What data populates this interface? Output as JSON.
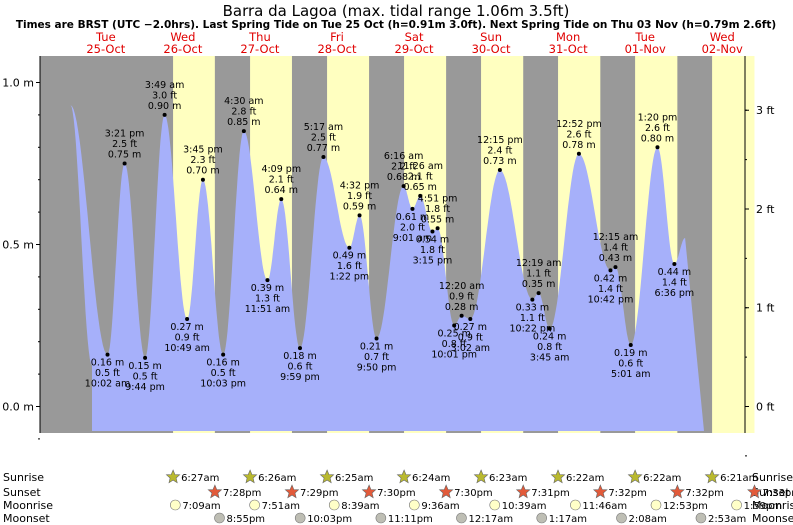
{
  "chart_data": {
    "type": "area",
    "title": "Barra da Lagoa (max. tidal range 1.06m 3.5ft)",
    "subtitle": "Times are BRST (UTC −2.0hrs). Last Spring Tide on Tue 25 Oct (h=0.91m 3.0ft). Next Spring Tide on Thu 03 Nov (h=0.79m 2.6ft)",
    "days": [
      {
        "name": "Tue",
        "date": "25-Oct"
      },
      {
        "name": "Wed",
        "date": "26-Oct"
      },
      {
        "name": "Thu",
        "date": "27-Oct"
      },
      {
        "name": "Fri",
        "date": "28-Oct"
      },
      {
        "name": "Sat",
        "date": "29-Oct"
      },
      {
        "name": "Sun",
        "date": "30-Oct"
      },
      {
        "name": "Mon",
        "date": "31-Oct"
      },
      {
        "name": "Tue",
        "date": "01-Nov"
      },
      {
        "name": "Wed",
        "date": "02-Nov"
      }
    ],
    "ylim_m": [
      -0.17,
      1.06
    ],
    "yticks_left": [
      "1.0 m",
      "0.5 m",
      "0.0 m"
    ],
    "yticks_right": [
      "3 ft",
      "2 ft",
      "1 ft",
      "0 ft"
    ],
    "tides": [
      {
        "t": "",
        "m": 0.93,
        "type": "high",
        "label": false
      },
      {
        "t": "10:02 am",
        "m": 0.16,
        "ft": "0.5 ft",
        "ml": "0.16 m",
        "type": "low"
      },
      {
        "t": "3:21 pm",
        "m": 0.75,
        "ft": "2.5 ft",
        "ml": "0.75 m",
        "type": "high"
      },
      {
        "t": "9:44 pm",
        "m": 0.15,
        "ft": "0.5 ft",
        "ml": "0.15 m",
        "type": "low"
      },
      {
        "t": "3:49 am",
        "m": 0.9,
        "ft": "3.0 ft",
        "ml": "0.90 m",
        "type": "high"
      },
      {
        "t": "10:49 am",
        "m": 0.27,
        "ft": "0.9 ft",
        "ml": "0.27 m",
        "type": "low"
      },
      {
        "t": "3:45 pm",
        "m": 0.7,
        "ft": "2.3 ft",
        "ml": "0.70 m",
        "type": "high"
      },
      {
        "t": "10:03 pm",
        "m": 0.16,
        "ft": "0.5 ft",
        "ml": "0.16 m",
        "type": "low"
      },
      {
        "t": "4:30 am",
        "m": 0.85,
        "ft": "2.8 ft",
        "ml": "0.85 m",
        "type": "high"
      },
      {
        "t": "11:51 am",
        "m": 0.39,
        "ft": "1.3 ft",
        "ml": "0.39 m",
        "type": "low"
      },
      {
        "t": "4:09 pm",
        "m": 0.64,
        "ft": "2.1 ft",
        "ml": "0.64 m",
        "type": "high"
      },
      {
        "t": "9:59 pm",
        "m": 0.18,
        "ft": "0.6 ft",
        "ml": "0.18 m",
        "type": "low"
      },
      {
        "t": "5:17 am",
        "m": 0.77,
        "ft": "2.5 ft",
        "ml": "0.77 m",
        "type": "high"
      },
      {
        "t": "1:22 pm",
        "m": 0.49,
        "ft": "1.6 ft",
        "ml": "0.49 m",
        "type": "low"
      },
      {
        "t": "4:32 pm",
        "m": 0.59,
        "ft": "1.9 ft",
        "ml": "0.59 m",
        "type": "high"
      },
      {
        "t": "9:50 pm",
        "m": 0.21,
        "ft": "0.7 ft",
        "ml": "0.21 m",
        "type": "low"
      },
      {
        "t": "6:16 am",
        "m": 0.68,
        "ft": "2.2 ft",
        "ml": "0.68 m",
        "type": "high"
      },
      {
        "t": "9:01 am",
        "m": 0.61,
        "ft": "2.0 ft",
        "ml": "0.61 m",
        "type": "low"
      },
      {
        "t": "11:26 am",
        "m": 0.65,
        "ft": "2.1 ft",
        "ml": "0.65 m",
        "type": "high"
      },
      {
        "t": "3:15 pm",
        "m": 0.54,
        "ft": "1.8 ft",
        "ml": "0.54 m",
        "type": "low"
      },
      {
        "t": "4:51 pm",
        "m": 0.55,
        "ft": "1.8 ft",
        "ml": "0.55 m",
        "type": "high"
      },
      {
        "t": "10:01 pm",
        "m": 0.25,
        "ft": "0.8 ft",
        "ml": "0.25 m",
        "type": "low"
      },
      {
        "t": "12:20 am",
        "m": 0.28,
        "ft": "0.9 ft",
        "ml": "0.28 m",
        "type": "high"
      },
      {
        "t": "3:02 am",
        "m": 0.27,
        "ft": "0.9 ft",
        "ml": "0.27 m",
        "type": "low"
      },
      {
        "t": "12:15 pm",
        "m": 0.73,
        "ft": "2.4 ft",
        "ml": "0.73 m",
        "type": "high"
      },
      {
        "t": "10:22 pm",
        "m": 0.33,
        "ft": "1.1 ft",
        "ml": "0.33 m",
        "type": "low"
      },
      {
        "t": "12:19 am",
        "m": 0.35,
        "ft": "1.1 ft",
        "ml": "0.35 m",
        "type": "high"
      },
      {
        "t": "3:45 am",
        "m": 0.24,
        "ft": "0.8 ft",
        "ml": "0.24 m",
        "type": "low"
      },
      {
        "t": "12:52 pm",
        "m": 0.78,
        "ft": "2.6 ft",
        "ml": "0.78 m",
        "type": "high"
      },
      {
        "t": "10:42 pm",
        "m": 0.42,
        "ft": "1.4 ft",
        "ml": "0.42 m",
        "type": "low"
      },
      {
        "t": "12:15 am",
        "m": 0.43,
        "ft": "1.4 ft",
        "ml": "0.43 m",
        "type": "high"
      },
      {
        "t": "5:01 am",
        "m": 0.19,
        "ft": "0.6 ft",
        "ml": "0.19 m",
        "type": "low"
      },
      {
        "t": "1:20 pm",
        "m": 0.8,
        "ft": "2.6 ft",
        "ml": "0.80 m",
        "type": "high"
      },
      {
        "t": "6:36 pm",
        "m": 0.44,
        "ft": "1.4 ft",
        "ml": "0.44 m",
        "type": "low"
      },
      {
        "t": "",
        "m": 0.52,
        "type": "high",
        "label": false
      }
    ],
    "rows": {
      "sunrise": {
        "label": "Sunrise",
        "times": [
          "6:27am",
          "6:26am",
          "6:25am",
          "6:24am",
          "6:23am",
          "6:22am",
          "6:22am",
          "6:21am"
        ]
      },
      "sunset": {
        "label": "Sunset",
        "times": [
          "7:28pm",
          "7:29pm",
          "7:30pm",
          "7:30pm",
          "7:31pm",
          "7:32pm",
          "7:32pm",
          "7:33pm"
        ]
      },
      "moonrise": {
        "label": "Moonrise",
        "times": [
          "7:09am",
          "7:51am",
          "8:39am",
          "9:36am",
          "10:39am",
          "11:46am",
          "12:53pm",
          "1:59pm"
        ]
      },
      "moonset": {
        "label": "Moonset",
        "times": [
          "8:55pm",
          "10:03pm",
          "11:11pm",
          "12:17am",
          "1:17am",
          "2:08am",
          "2:53am"
        ]
      }
    },
    "colors": {
      "water": "#a6b0fa",
      "night": "#999999",
      "day": "#ffffc0",
      "day_label": "#e00000",
      "sun_icon": "#b9b92f",
      "sunset_icon": "#e25a3a",
      "moonrise_icon": "#ffffc8",
      "moonset_icon": "#bebeb4"
    }
  }
}
